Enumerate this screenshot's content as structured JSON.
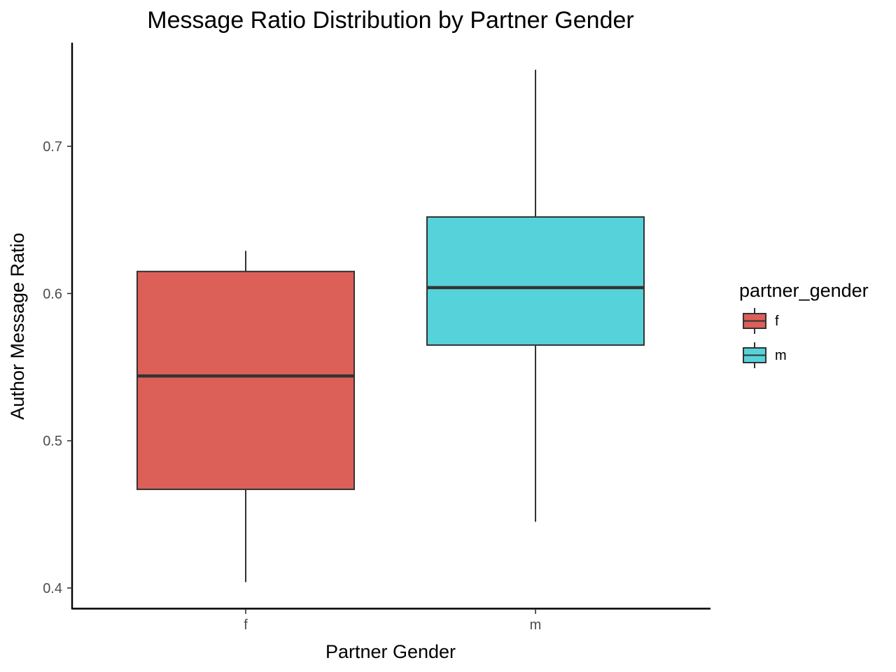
{
  "chart_data": {
    "type": "boxplot",
    "title": "Message Ratio Distribution by Partner Gender",
    "xlabel": "Partner Gender",
    "ylabel": "Author Message Ratio",
    "categories": [
      "f",
      "m"
    ],
    "ylim": [
      0.386,
      0.77
    ],
    "yticks": [
      0.4,
      0.5,
      0.6,
      0.7
    ],
    "ytick_labels": [
      "0.4",
      "0.5",
      "0.6",
      "0.7"
    ],
    "grid": false,
    "legend": {
      "title": "partner_gender",
      "position": "right",
      "entries": [
        "f",
        "m"
      ]
    },
    "series": [
      {
        "category": "f",
        "whisker_low": 0.404,
        "q1": 0.467,
        "median": 0.544,
        "q3": 0.615,
        "whisker_high": 0.629,
        "color": "#DC5F58"
      },
      {
        "category": "m",
        "whisker_low": 0.445,
        "q1": 0.565,
        "median": 0.604,
        "q3": 0.652,
        "whisker_high": 0.752,
        "color": "#56D3DA"
      }
    ]
  }
}
